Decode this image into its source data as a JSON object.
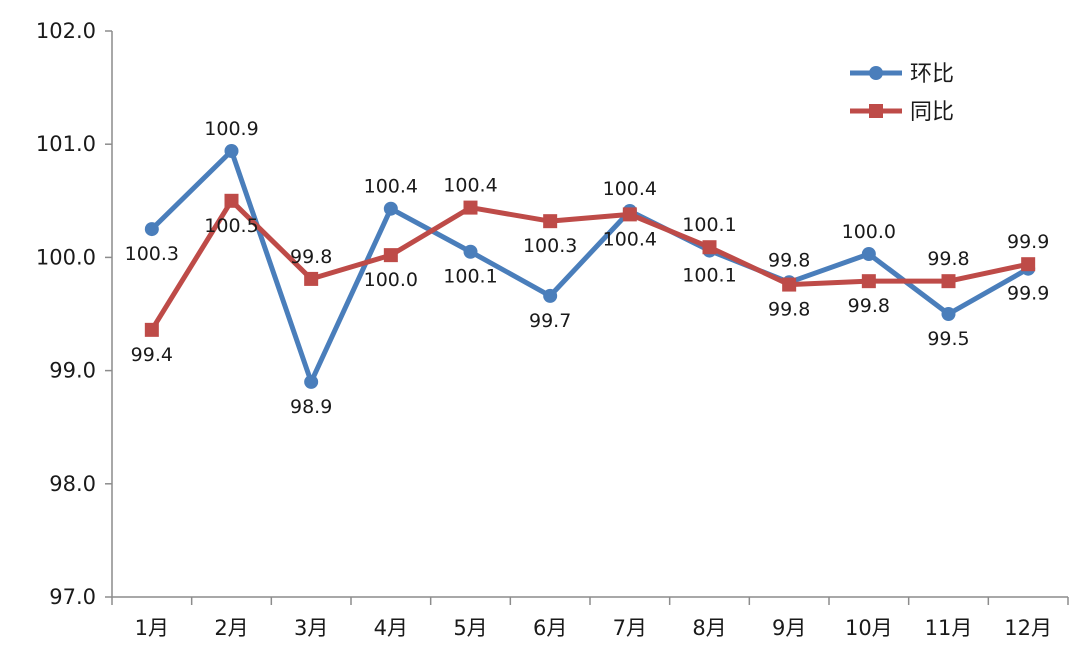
{
  "chart_data": {
    "type": "line",
    "title": "",
    "xlabel": "",
    "ylabel": "",
    "categories": [
      "1月",
      "2月",
      "3月",
      "4月",
      "5月",
      "6月",
      "7月",
      "8月",
      "9月",
      "10月",
      "11月",
      "12月"
    ],
    "ylim": [
      97.0,
      102.0
    ],
    "yticks": [
      "97.0",
      "98.0",
      "99.0",
      "100.0",
      "101.0",
      "102.0"
    ],
    "grid": false,
    "legend_position": "top-right",
    "series": [
      {
        "name": "环比",
        "color": "#4a7ebb",
        "marker": "circle",
        "values": [
          100.25,
          100.94,
          98.9,
          100.43,
          100.05,
          99.66,
          100.41,
          100.06,
          99.78,
          100.03,
          99.5,
          99.9
        ],
        "labels": [
          "100.3",
          "100.9",
          "98.9",
          "100.4",
          "100.1",
          "99.7",
          "100.4",
          "100.1",
          "99.8",
          "100.0",
          "99.5",
          "99.9"
        ],
        "label_side": [
          "below",
          "above",
          "below",
          "above",
          "below",
          "below",
          "above",
          "below",
          "above",
          "above",
          "below",
          "below"
        ]
      },
      {
        "name": "同比",
        "color": "#be4b48",
        "marker": "square",
        "values": [
          99.36,
          100.5,
          99.81,
          100.02,
          100.44,
          100.32,
          100.38,
          100.09,
          99.76,
          99.79,
          99.79,
          99.94
        ],
        "labels": [
          "99.4",
          "100.5",
          "99.8",
          "100.0",
          "100.4",
          "100.3",
          "100.4",
          "100.1",
          "99.8",
          "99.8",
          "99.8",
          "99.9"
        ],
        "label_side": [
          "below",
          "below",
          "above",
          "below",
          "above",
          "below",
          "below",
          "above",
          "below",
          "below",
          "above",
          "above"
        ]
      }
    ]
  }
}
